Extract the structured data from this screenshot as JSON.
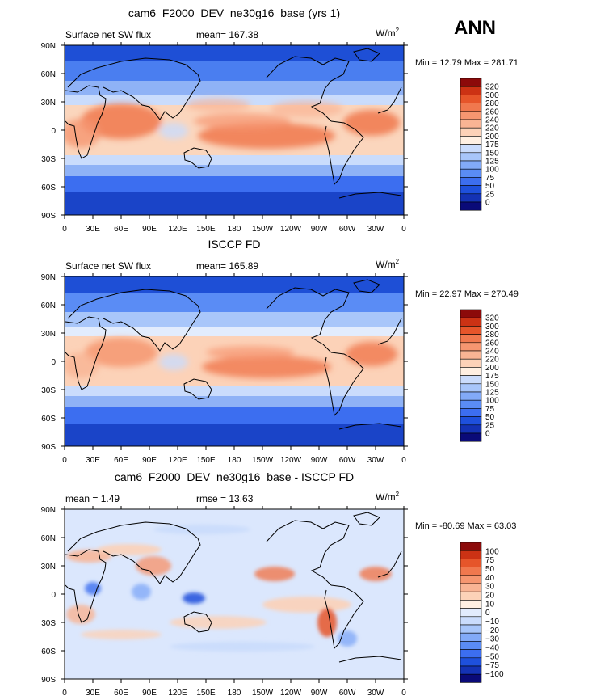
{
  "header": {
    "season": "ANN"
  },
  "colors": {
    "main_scale": [
      "#0a0a78",
      "#1432b4",
      "#1e50dc",
      "#3c6ef0",
      "#5a8cf5",
      "#82aaf8",
      "#a8c6fa",
      "#cadcfc",
      "#fff0e2",
      "#fcd2b8",
      "#f9b494",
      "#f69670",
      "#f0784e",
      "#e6552a",
      "#cc3214",
      "#8c0a0a"
    ],
    "diff_scale": [
      "#0a0a78",
      "#1432b4",
      "#1e50dc",
      "#3c6ef0",
      "#5a8cf5",
      "#82aaf8",
      "#a8c6fa",
      "#cadcfc",
      "#e2ecfd",
      "#fff0e2",
      "#fcd2b8",
      "#f9b494",
      "#f69670",
      "#f0784e",
      "#e6552a",
      "#cc3214",
      "#8c0a0a"
    ],
    "ocean_base": "#2f5fd8",
    "coast": "#000000"
  },
  "chart_data": [
    {
      "type": "heatmap",
      "title": "cam6_F2000_DEV_ne30g16_base (yrs 1)",
      "left_label": "Surface net SW flux",
      "center_label": "mean=  167.38",
      "units": "W/m",
      "units_sup": "2",
      "minmax": "Min =  12.79 Max = 281.71",
      "x_ticks": [
        "0",
        "30E",
        "60E",
        "90E",
        "120E",
        "150E",
        "180",
        "150W",
        "120W",
        "90W",
        "60W",
        "30W",
        "0"
      ],
      "y_ticks": [
        "90N",
        "60N",
        "30N",
        "0",
        "30S",
        "60S",
        "90S"
      ],
      "xlim": [
        0,
        360
      ],
      "ylim": [
        -90,
        90
      ],
      "levels": [
        "320",
        "300",
        "280",
        "260",
        "240",
        "220",
        "200",
        "175",
        "150",
        "125",
        "100",
        "75",
        "50",
        "25",
        "0"
      ]
    },
    {
      "type": "heatmap",
      "title": "ISCCP FD",
      "left_label": "Surface net SW flux",
      "center_label": "mean=  165.89",
      "units": "W/m",
      "units_sup": "2",
      "minmax": "Min =  22.97 Max = 270.49",
      "x_ticks": [
        "0",
        "30E",
        "60E",
        "90E",
        "120E",
        "150E",
        "180",
        "150W",
        "120W",
        "90W",
        "60W",
        "30W",
        "0"
      ],
      "y_ticks": [
        "90N",
        "60N",
        "30N",
        "0",
        "30S",
        "60S",
        "90S"
      ],
      "xlim": [
        0,
        360
      ],
      "ylim": [
        -90,
        90
      ],
      "levels": [
        "320",
        "300",
        "280",
        "260",
        "240",
        "220",
        "200",
        "175",
        "150",
        "125",
        "100",
        "75",
        "50",
        "25",
        "0"
      ]
    },
    {
      "type": "heatmap",
      "title": "cam6_F2000_DEV_ne30g16_base - ISCCP FD",
      "left_label": "mean =    1.49",
      "center_label": "rmse =   13.63",
      "units": "W/m",
      "units_sup": "2",
      "minmax": "Min = -80.69 Max =  63.03",
      "x_ticks": [
        "0",
        "30E",
        "60E",
        "90E",
        "120E",
        "150E",
        "180",
        "150W",
        "120W",
        "90W",
        "60W",
        "30W",
        "0"
      ],
      "y_ticks": [
        "90N",
        "60N",
        "30N",
        "0",
        "30S",
        "60S",
        "90S"
      ],
      "xlim": [
        0,
        360
      ],
      "ylim": [
        -90,
        90
      ],
      "levels": [
        "100",
        "75",
        "50",
        "40",
        "30",
        "20",
        "10",
        "0",
        "−10",
        "−20",
        "−30",
        "−40",
        "−50",
        "−75",
        "−100"
      ]
    }
  ]
}
